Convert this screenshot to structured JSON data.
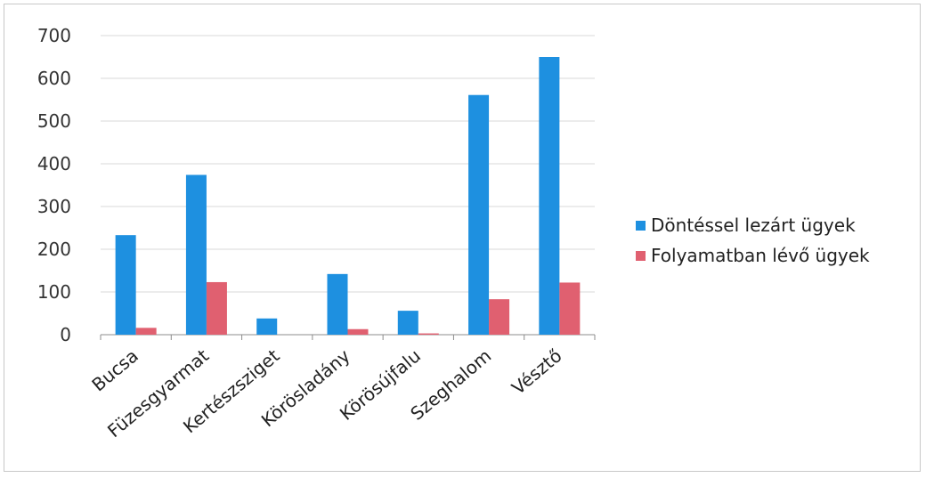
{
  "chart_data": {
    "type": "bar",
    "categories": [
      "Bucsa",
      "Füzesgyarmat",
      "Kertészsziget",
      "Körösladány",
      "Körösújfalu",
      "Szeghalom",
      "Vésztő"
    ],
    "series": [
      {
        "name": "Döntéssel lezárt ügyek",
        "values": [
          233,
          374,
          38,
          142,
          56,
          561,
          650
        ],
        "color": "#1e90e0"
      },
      {
        "name": "Folyamatban lévő ügyek",
        "values": [
          16,
          123,
          0,
          13,
          3,
          83,
          122
        ],
        "color": "#e06070"
      }
    ],
    "ylim": [
      0,
      700
    ],
    "yticks": [
      "0",
      "100",
      "200",
      "300",
      "400",
      "500",
      "600",
      "700"
    ],
    "grid": true,
    "legend_position": "right",
    "title": "",
    "xlabel": "",
    "ylabel": ""
  }
}
